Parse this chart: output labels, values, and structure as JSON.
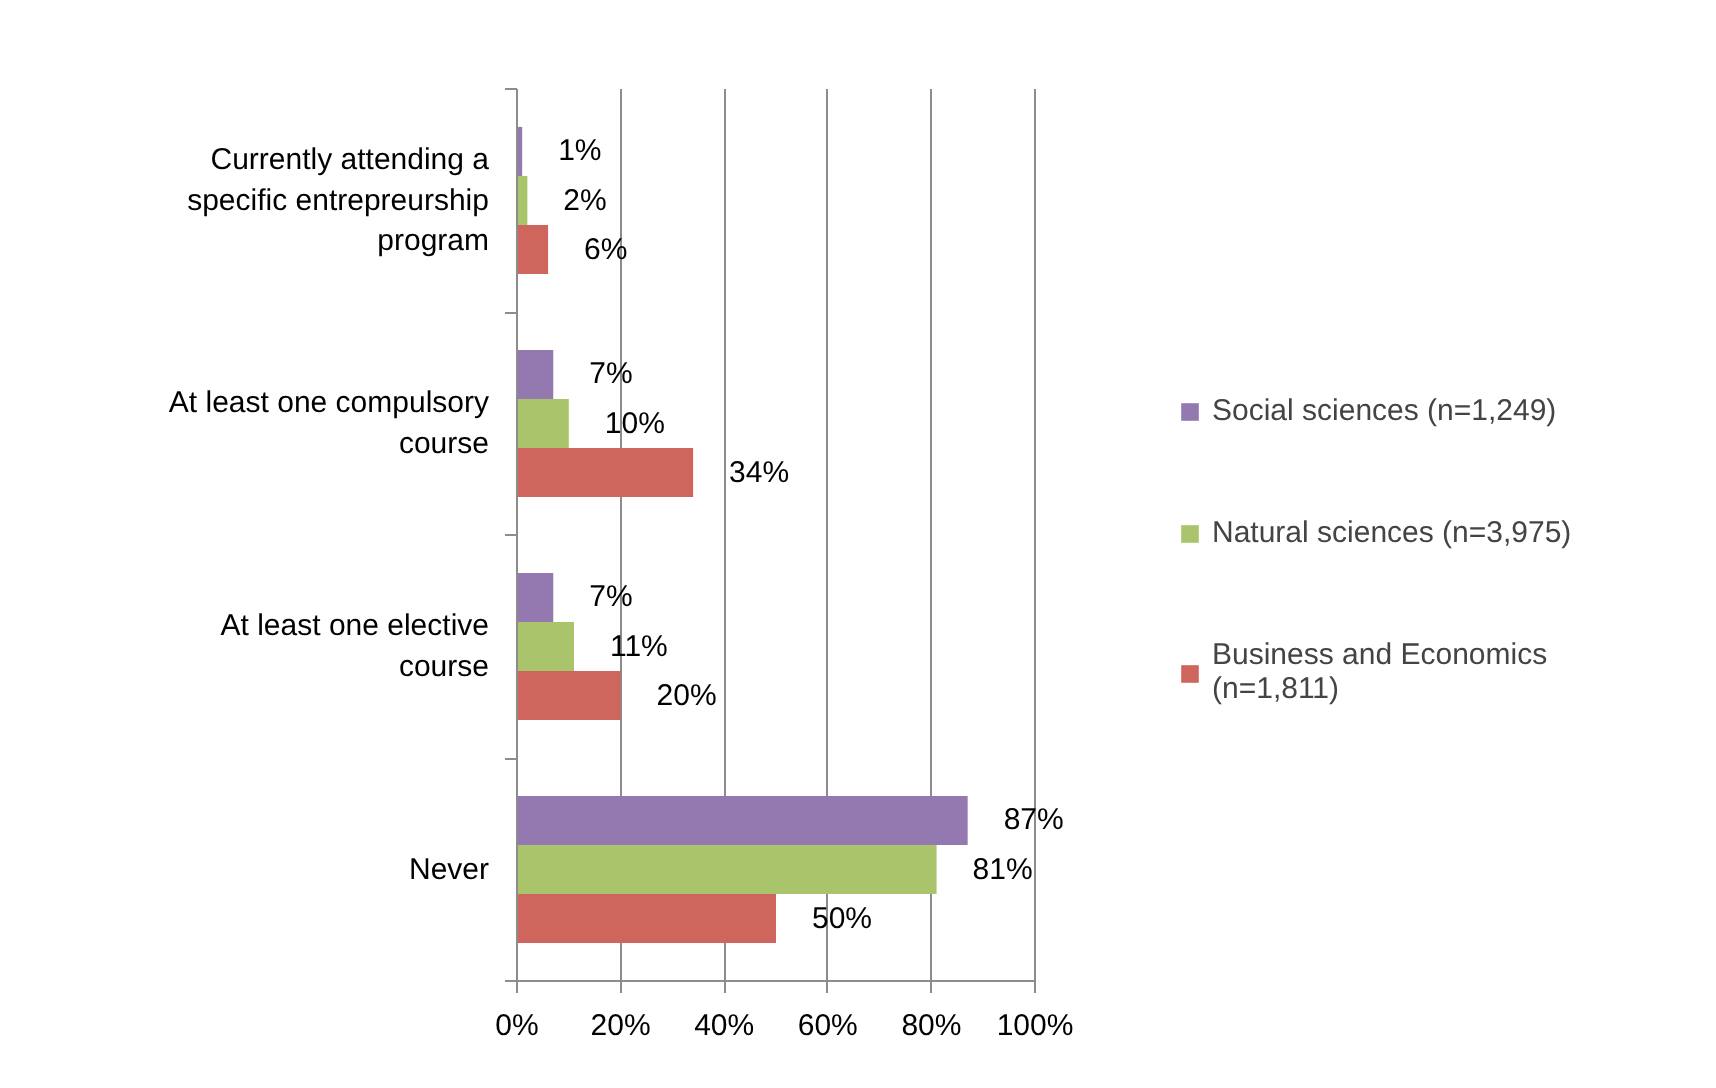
{
  "chart_data": {
    "type": "bar",
    "orientation": "horizontal",
    "categories": [
      "Currently attending a specific entrepreurship program",
      "At least one compulsory course",
      "At least one elective course",
      "Never"
    ],
    "series": [
      {
        "name": "Social sciences (n=1,249)",
        "color": "#9479b0",
        "values": [
          1,
          7,
          7,
          87
        ],
        "value_labels": [
          "1%",
          "7%",
          "7%",
          "87%"
        ]
      },
      {
        "name": "Natural sciences (n=3,975)",
        "color": "#a9c46a",
        "values": [
          2,
          10,
          11,
          81
        ],
        "value_labels": [
          "2%",
          "10%",
          "11%",
          "81%"
        ]
      },
      {
        "name": "Business and Economics (n=1,811)",
        "color": "#cf665e",
        "values": [
          6,
          34,
          20,
          50
        ],
        "value_labels": [
          "6%",
          "34%",
          "20%",
          "50%"
        ]
      }
    ],
    "xlim": [
      0,
      100
    ],
    "xticks": [
      {
        "value": 0,
        "label": "0%"
      },
      {
        "value": 20,
        "label": "20%"
      },
      {
        "value": 40,
        "label": "40%"
      },
      {
        "value": 60,
        "label": "60%"
      },
      {
        "value": 80,
        "label": "80%"
      },
      {
        "value": 100,
        "label": "100%"
      }
    ],
    "grid": "x",
    "legend": "right"
  }
}
